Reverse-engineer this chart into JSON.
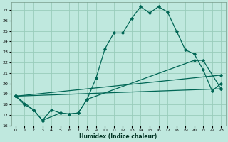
{
  "xlabel": "Humidex (Indice chaleur)",
  "background_color": "#bfe8de",
  "grid_color": "#99ccbb",
  "line_color": "#006655",
  "marker_color": "#006655",
  "xlim": [
    -0.5,
    23.5
  ],
  "ylim": [
    16,
    27.7
  ],
  "yticks": [
    16,
    17,
    18,
    19,
    20,
    21,
    22,
    23,
    24,
    25,
    26,
    27
  ],
  "xticks": [
    0,
    1,
    2,
    3,
    4,
    5,
    6,
    7,
    8,
    9,
    10,
    11,
    12,
    13,
    14,
    15,
    16,
    17,
    18,
    19,
    20,
    21,
    22,
    23
  ],
  "series1": [
    [
      0,
      18.8
    ],
    [
      1,
      18.0
    ],
    [
      2,
      17.5
    ],
    [
      3,
      16.5
    ],
    [
      4,
      17.5
    ],
    [
      5,
      17.2
    ],
    [
      6,
      17.1
    ],
    [
      7,
      17.2
    ],
    [
      8,
      18.5
    ],
    [
      9,
      20.5
    ],
    [
      10,
      23.3
    ],
    [
      11,
      24.8
    ],
    [
      12,
      24.8
    ],
    [
      13,
      26.2
    ],
    [
      14,
      27.3
    ],
    [
      15,
      26.7
    ],
    [
      16,
      27.3
    ],
    [
      17,
      26.8
    ],
    [
      18,
      25.0
    ],
    [
      19,
      23.2
    ],
    [
      20,
      22.8
    ],
    [
      21,
      21.3
    ],
    [
      22,
      19.3
    ],
    [
      23,
      20.0
    ]
  ],
  "series2": [
    [
      0,
      18.8
    ],
    [
      2,
      17.5
    ],
    [
      3,
      16.5
    ],
    [
      5,
      17.2
    ],
    [
      6,
      17.1
    ],
    [
      7,
      17.2
    ],
    [
      8,
      18.5
    ],
    [
      20,
      22.2
    ],
    [
      21,
      22.2
    ],
    [
      23,
      19.5
    ]
  ],
  "series3_x": [
    0,
    23
  ],
  "series3_y": [
    18.8,
    19.5
  ],
  "series4_x": [
    0,
    23
  ],
  "series4_y": [
    18.8,
    20.8
  ]
}
